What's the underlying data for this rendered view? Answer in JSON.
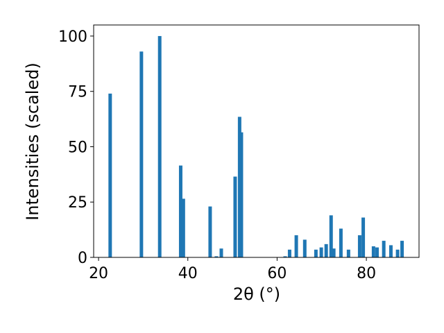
{
  "chart_data": {
    "type": "bar",
    "x_label": "2θ (°)",
    "y_label": "Intensities (scaled)",
    "x": [
      22.6,
      29.6,
      33.7,
      38.4,
      39.0,
      45.0,
      46.4,
      47.5,
      50.6,
      51.6,
      52.0,
      61.8,
      62.8,
      64.3,
      66.2,
      68.7,
      69.9,
      71.0,
      72.1,
      72.7,
      74.3,
      76.0,
      78.5,
      79.3,
      81.6,
      82.4,
      83.9,
      85.5,
      87.0,
      88.0
    ],
    "values": [
      74,
      93,
      100,
      41.5,
      26.5,
      23,
      0.5,
      4,
      36.5,
      63.5,
      56.5,
      0.5,
      3.5,
      10,
      8,
      3.5,
      4.5,
      6,
      19,
      4,
      13,
      3.5,
      10,
      18,
      5,
      4.5,
      7.5,
      5.5,
      3.5,
      7.5
    ],
    "color": "#1f77b4",
    "xlim": [
      18.9,
      91.8
    ],
    "xticks": [
      20,
      40,
      60,
      80
    ],
    "ylim": [
      0,
      105
    ],
    "yticks": [
      0,
      25,
      50,
      75,
      100
    ]
  }
}
